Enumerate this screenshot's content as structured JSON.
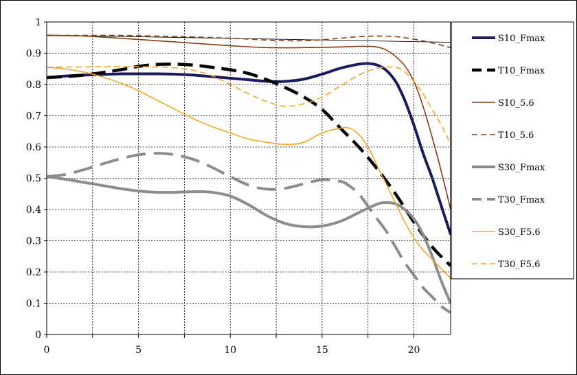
{
  "chart_data": {
    "type": "line",
    "title": "",
    "xlabel": "",
    "ylabel": "",
    "xlim": [
      0,
      22
    ],
    "ylim": [
      0,
      1
    ],
    "grid": true,
    "legend_position": "right",
    "x_ticks": [
      "0",
      "5",
      "10",
      "15",
      "20"
    ],
    "y_ticks": [
      "0",
      "0.1",
      "0.2",
      "0.3",
      "0.4",
      "0.5",
      "0.6",
      "0.7",
      "0.8",
      "0.9",
      "1"
    ],
    "series": [
      {
        "name": "S10_Fmax",
        "color": "#1a1a5e",
        "width": 4,
        "dash": "",
        "x": [
          0,
          1,
          2,
          3,
          4,
          5,
          6,
          7,
          8,
          9,
          10,
          11,
          12,
          13,
          14,
          15,
          16,
          17,
          17.5,
          18,
          18.5,
          19,
          19.5,
          20,
          20.5,
          21,
          21.5,
          22
        ],
        "y": [
          0.822,
          0.827,
          0.83,
          0.832,
          0.834,
          0.834,
          0.834,
          0.833,
          0.83,
          0.825,
          0.82,
          0.815,
          0.81,
          0.81,
          0.817,
          0.833,
          0.852,
          0.865,
          0.867,
          0.862,
          0.845,
          0.81,
          0.75,
          0.67,
          0.58,
          0.5,
          0.41,
          0.32
        ]
      },
      {
        "name": "T10_Fmax",
        "color": "#000000",
        "width": 4.5,
        "dash": "22,10",
        "x": [
          0,
          2,
          4,
          5,
          6,
          7,
          8,
          9,
          10,
          11,
          12,
          13,
          14,
          15,
          16,
          17,
          18,
          19,
          20,
          21,
          22
        ],
        "y": [
          0.822,
          0.83,
          0.847,
          0.858,
          0.864,
          0.865,
          0.862,
          0.855,
          0.847,
          0.835,
          0.815,
          0.79,
          0.76,
          0.72,
          0.66,
          0.6,
          0.53,
          0.45,
          0.36,
          0.28,
          0.22
        ]
      },
      {
        "name": "S10_5.6",
        "color": "#8b3a0e",
        "width": 1.6,
        "dash": "",
        "x": [
          0,
          2,
          4,
          6,
          8,
          10,
          12,
          14,
          16,
          17,
          17.5,
          18,
          18.5,
          19,
          19.5,
          20,
          20.5,
          21,
          21.5,
          22
        ],
        "y": [
          0.957,
          0.955,
          0.948,
          0.94,
          0.932,
          0.924,
          0.918,
          0.918,
          0.92,
          0.922,
          0.922,
          0.92,
          0.91,
          0.89,
          0.86,
          0.81,
          0.73,
          0.63,
          0.52,
          0.4
        ]
      },
      {
        "name": "T10_5.6",
        "color": "#8b3a0e",
        "width": 1.6,
        "dash": "8,5",
        "x": [
          0,
          2,
          4,
          6,
          8,
          10,
          12,
          13,
          14,
          15,
          16,
          17,
          18,
          19,
          20,
          21,
          22
        ],
        "y": [
          0.957,
          0.957,
          0.957,
          0.955,
          0.952,
          0.948,
          0.942,
          0.94,
          0.94,
          0.943,
          0.948,
          0.953,
          0.955,
          0.953,
          0.945,
          0.933,
          0.918
        ]
      },
      {
        "name": "S30_Fmax",
        "color": "#8c8c8c",
        "width": 4,
        "dash": "",
        "x": [
          0,
          1,
          2,
          3,
          4,
          5,
          6,
          7,
          8,
          9,
          10,
          11,
          12,
          13,
          14,
          15,
          16,
          17,
          18,
          18.5,
          19,
          19.5,
          20,
          20.5,
          21,
          21.5,
          22
        ],
        "y": [
          0.505,
          0.497,
          0.487,
          0.477,
          0.467,
          0.459,
          0.455,
          0.455,
          0.457,
          0.455,
          0.443,
          0.415,
          0.38,
          0.355,
          0.345,
          0.347,
          0.362,
          0.39,
          0.417,
          0.422,
          0.418,
          0.4,
          0.37,
          0.32,
          0.25,
          0.17,
          0.1
        ]
      },
      {
        "name": "T30_Fmax",
        "color": "#8c8c8c",
        "width": 4,
        "dash": "28,12",
        "x": [
          0,
          1,
          2,
          3,
          4,
          5,
          6,
          7,
          8,
          9,
          10,
          11,
          12,
          13,
          14,
          15,
          16,
          16.5,
          17,
          17.5,
          18,
          18.5,
          19,
          19.5,
          20,
          20.5,
          21,
          21.5,
          22
        ],
        "y": [
          0.505,
          0.512,
          0.527,
          0.545,
          0.562,
          0.575,
          0.58,
          0.575,
          0.56,
          0.535,
          0.505,
          0.478,
          0.465,
          0.468,
          0.482,
          0.495,
          0.49,
          0.475,
          0.45,
          0.41,
          0.37,
          0.33,
          0.28,
          0.23,
          0.19,
          0.15,
          0.12,
          0.09,
          0.07
        ]
      },
      {
        "name": "S30_F5.6",
        "color": "#f5a623",
        "width": 1.6,
        "dash": "",
        "x": [
          0,
          1,
          2,
          3,
          4,
          5,
          6,
          7,
          8,
          9,
          10,
          11,
          12,
          13,
          14,
          15,
          16,
          16.5,
          17,
          17.5,
          18,
          18.5,
          19,
          19.5,
          20,
          20.5,
          21,
          21.5,
          22
        ],
        "y": [
          0.855,
          0.85,
          0.84,
          0.825,
          0.805,
          0.78,
          0.75,
          0.72,
          0.69,
          0.665,
          0.645,
          0.625,
          0.615,
          0.608,
          0.615,
          0.645,
          0.66,
          0.66,
          0.64,
          0.6,
          0.54,
          0.48,
          0.42,
          0.36,
          0.31,
          0.27,
          0.24,
          0.21,
          0.18
        ]
      },
      {
        "name": "T30_F5.6",
        "color": "#f5a623",
        "width": 1.6,
        "dash": "9,5",
        "x": [
          0,
          1,
          2,
          3,
          4,
          5,
          6,
          7,
          8,
          9,
          10,
          11,
          12,
          13,
          14,
          15,
          16,
          17,
          18,
          19,
          19.5,
          20,
          20.5,
          21,
          21.5,
          22
        ],
        "y": [
          0.855,
          0.856,
          0.856,
          0.857,
          0.857,
          0.857,
          0.856,
          0.853,
          0.845,
          0.828,
          0.8,
          0.77,
          0.745,
          0.73,
          0.738,
          0.76,
          0.795,
          0.83,
          0.852,
          0.855,
          0.84,
          0.81,
          0.77,
          0.72,
          0.67,
          0.61
        ]
      }
    ]
  }
}
